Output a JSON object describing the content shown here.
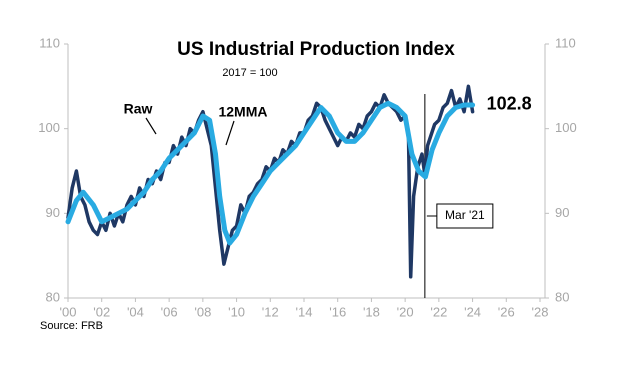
{
  "chart_data": {
    "type": "line",
    "title": "US Industrial Production Index",
    "subtitle": "2017 = 100",
    "source": "Source: FRB",
    "xlim": [
      2000,
      2028
    ],
    "xticks": [
      {
        "value": 2000,
        "label": "'00"
      },
      {
        "value": 2002,
        "label": "'02"
      },
      {
        "value": 2004,
        "label": "'04"
      },
      {
        "value": 2006,
        "label": "'06"
      },
      {
        "value": 2008,
        "label": "'08"
      },
      {
        "value": 2010,
        "label": "'10"
      },
      {
        "value": 2012,
        "label": "'12"
      },
      {
        "value": 2014,
        "label": "'14"
      },
      {
        "value": 2016,
        "label": "'16"
      },
      {
        "value": 2018,
        "label": "'18"
      },
      {
        "value": 2020,
        "label": "'20"
      },
      {
        "value": 2022,
        "label": "'22"
      },
      {
        "value": 2024,
        "label": "'24"
      },
      {
        "value": 2026,
        "label": "'26"
      },
      {
        "value": 2028,
        "label": "'28"
      }
    ],
    "ylim": [
      80,
      110
    ],
    "yticks": [
      80,
      90,
      100,
      110
    ],
    "y2lim": [
      80,
      110
    ],
    "y2ticks": [
      80,
      90,
      100,
      110
    ],
    "series": [
      {
        "name": "Raw",
        "color": "#1f3864",
        "x": [
          2000.0,
          2000.25,
          2000.5,
          2000.75,
          2001.0,
          2001.25,
          2001.5,
          2001.75,
          2002.0,
          2002.25,
          2002.5,
          2002.75,
          2003.0,
          2003.25,
          2003.5,
          2003.75,
          2004.0,
          2004.25,
          2004.5,
          2004.75,
          2005.0,
          2005.25,
          2005.5,
          2005.75,
          2006.0,
          2006.25,
          2006.5,
          2006.75,
          2007.0,
          2007.25,
          2007.5,
          2007.75,
          2008.0,
          2008.25,
          2008.5,
          2008.75,
          2009.0,
          2009.25,
          2009.5,
          2009.75,
          2010.0,
          2010.25,
          2010.5,
          2010.75,
          2011.0,
          2011.25,
          2011.5,
          2011.75,
          2012.0,
          2012.25,
          2012.5,
          2012.75,
          2013.0,
          2013.25,
          2013.5,
          2013.75,
          2014.0,
          2014.25,
          2014.5,
          2014.75,
          2015.0,
          2015.25,
          2015.5,
          2015.75,
          2016.0,
          2016.25,
          2016.5,
          2016.75,
          2017.0,
          2017.25,
          2017.5,
          2017.75,
          2018.0,
          2018.25,
          2018.5,
          2018.75,
          2019.0,
          2019.25,
          2019.5,
          2019.75,
          2020.0,
          2020.2,
          2020.33,
          2020.5,
          2020.75,
          2021.0,
          2021.17,
          2021.33,
          2021.5,
          2021.75,
          2022.0,
          2022.25,
          2022.5,
          2022.75,
          2023.0,
          2023.25,
          2023.5,
          2023.75,
          2024.0
        ],
        "values": [
          89.5,
          93,
          95,
          92,
          91,
          89,
          88,
          87.5,
          89,
          88,
          90,
          88.5,
          90,
          89,
          91,
          92,
          91,
          93,
          92,
          94,
          93.5,
          95,
          94,
          96,
          96,
          98,
          97,
          99,
          98,
          100,
          99.5,
          101,
          102,
          100,
          98,
          93,
          88,
          84,
          86,
          88,
          88.5,
          91,
          90,
          92,
          92.5,
          93.5,
          94,
          95.5,
          95,
          96.5,
          96,
          97.5,
          97,
          98.5,
          98,
          99.5,
          99.5,
          101,
          101.5,
          103,
          102.5,
          101,
          100,
          99,
          98,
          99,
          98.5,
          99.5,
          99,
          100.5,
          100,
          101.5,
          102,
          103,
          102.5,
          104,
          103,
          102.5,
          102,
          101,
          101.5,
          99,
          82.5,
          92,
          95.5,
          97,
          94.5,
          98,
          99,
          100.5,
          101,
          102.5,
          103,
          104.5,
          102.5,
          103.5,
          102,
          105,
          102
        ]
      },
      {
        "name": "12MMA",
        "color": "#29abe2",
        "x": [
          2000.0,
          2000.5,
          2000.9,
          2001.5,
          2002.0,
          2002.5,
          2003.0,
          2003.5,
          2004.0,
          2004.5,
          2005.0,
          2005.5,
          2006.0,
          2006.5,
          2007.0,
          2007.5,
          2008.0,
          2008.4,
          2008.75,
          2009.0,
          2009.3,
          2009.6,
          2010.0,
          2010.5,
          2011.0,
          2011.5,
          2012.0,
          2012.5,
          2013.0,
          2013.5,
          2014.0,
          2014.5,
          2015.0,
          2015.5,
          2016.0,
          2016.5,
          2017.0,
          2017.5,
          2018.0,
          2018.5,
          2019.0,
          2019.5,
          2020.0,
          2020.4,
          2020.8,
          2021.2,
          2021.6,
          2022.0,
          2022.5,
          2023.0,
          2023.5,
          2024.0
        ],
        "values": [
          89,
          91.5,
          92.5,
          91,
          89,
          89.5,
          90,
          90.5,
          91.5,
          92.5,
          94,
          95,
          96.5,
          97.5,
          98.5,
          99.5,
          101.5,
          101,
          97,
          92,
          88,
          86.5,
          87.5,
          90,
          92,
          93.5,
          95,
          96,
          97,
          98,
          99.5,
          101,
          102.5,
          101.5,
          99.5,
          98.5,
          98.5,
          99.5,
          101,
          102.5,
          103,
          102.5,
          101.5,
          97,
          95,
          94.3,
          97.5,
          99.5,
          101.5,
          102.5,
          102.8,
          102.8
        ]
      }
    ],
    "annotations": [
      {
        "text": "Mar '21",
        "x": 2021.17
      }
    ]
  }
}
